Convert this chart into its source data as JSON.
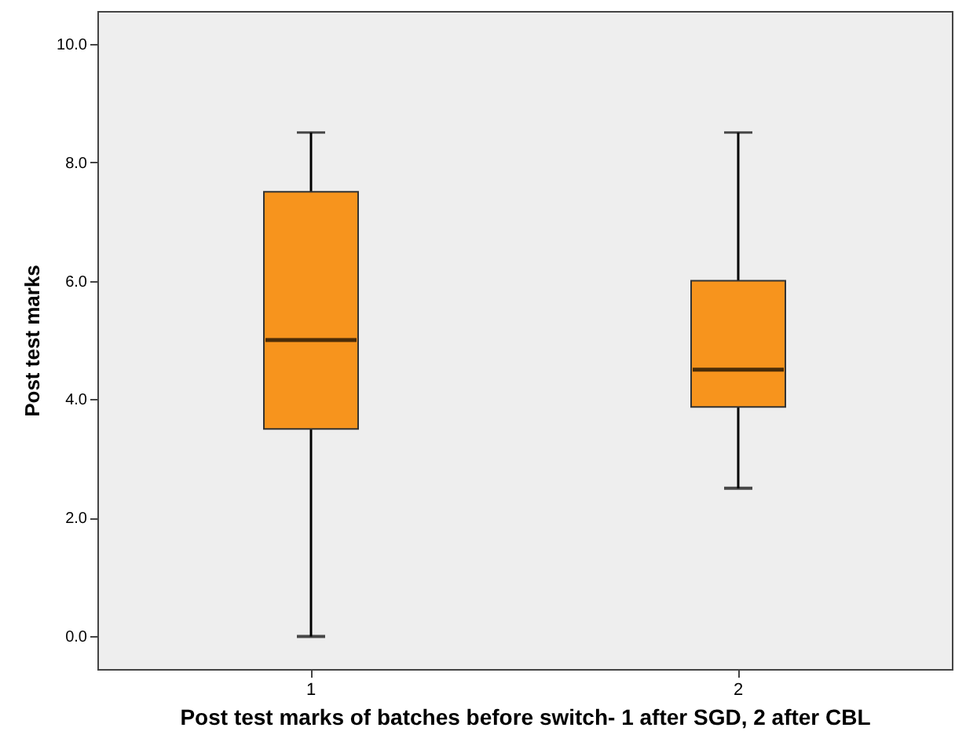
{
  "chart_data": {
    "type": "box",
    "xlabel": "Post test marks of batches before switch- 1 after SGD, 2 after CBL",
    "ylabel": "Post test marks",
    "categories": [
      "1",
      "2"
    ],
    "boxes": [
      {
        "low": 0,
        "q1": 3.5,
        "median": 5,
        "q3": 7.5,
        "high": 8.5
      },
      {
        "low": 2.5,
        "q1": 3.87,
        "median": 4.5,
        "q3": 6,
        "high": 8.5
      }
    ],
    "color": "#f7941d",
    "ylim": [
      -0.55,
      10.55
    ],
    "yticks": [
      {
        "value": 0,
        "label": "0.0"
      },
      {
        "value": 2,
        "label": "2.0"
      },
      {
        "value": 4,
        "label": "4.0"
      },
      {
        "value": 6,
        "label": "6.0"
      },
      {
        "value": 8,
        "label": "8.0"
      },
      {
        "value": 10,
        "label": "10.0"
      }
    ],
    "grid": false
  }
}
